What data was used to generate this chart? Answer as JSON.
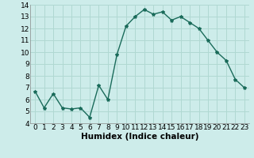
{
  "x": [
    0,
    1,
    2,
    3,
    4,
    5,
    6,
    7,
    8,
    9,
    10,
    11,
    12,
    13,
    14,
    15,
    16,
    17,
    18,
    19,
    20,
    21,
    22,
    23
  ],
  "y": [
    6.7,
    5.3,
    6.5,
    5.3,
    5.2,
    5.3,
    4.5,
    7.2,
    6.0,
    9.8,
    12.2,
    13.0,
    13.6,
    13.2,
    13.4,
    12.7,
    13.0,
    12.5,
    12.0,
    11.0,
    10.0,
    9.3,
    7.7,
    7.0
  ],
  "line_color": "#1a6b5a",
  "marker": "*",
  "marker_size": 3,
  "background_color": "#cdecea",
  "grid_color": "#b0d8d2",
  "xlabel": "Humidex (Indice chaleur)",
  "ylim": [
    4,
    14
  ],
  "yticks": [
    4,
    5,
    6,
    7,
    8,
    9,
    10,
    11,
    12,
    13,
    14
  ],
  "xticks": [
    0,
    1,
    2,
    3,
    4,
    5,
    6,
    7,
    8,
    9,
    10,
    11,
    12,
    13,
    14,
    15,
    16,
    17,
    18,
    19,
    20,
    21,
    22,
    23
  ],
  "xlabel_fontsize": 7.5,
  "tick_fontsize": 6.5,
  "linewidth": 1.0
}
